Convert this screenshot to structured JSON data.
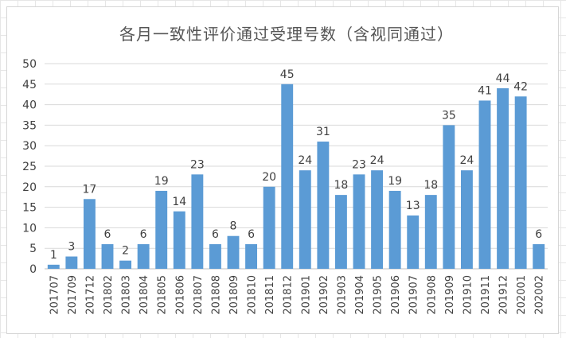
{
  "chart_data": {
    "type": "bar",
    "title": "各月一致性评价通过受理号数（含视同通过）",
    "categories": [
      "201707",
      "201709",
      "201712",
      "201802",
      "201803",
      "201804",
      "201805",
      "201806",
      "201807",
      "201808",
      "201809",
      "201810",
      "201811",
      "201812",
      "201901",
      "201902",
      "201903",
      "201904",
      "201905",
      "201906",
      "201907",
      "201908",
      "201909",
      "201910",
      "201911",
      "201912",
      "202001",
      "202002"
    ],
    "values": [
      1,
      3,
      17,
      6,
      2,
      6,
      19,
      14,
      23,
      6,
      8,
      6,
      20,
      45,
      24,
      31,
      18,
      23,
      24,
      19,
      13,
      18,
      35,
      24,
      41,
      44,
      42,
      6
    ],
    "ylim": [
      0,
      50
    ],
    "yticks": [
      0,
      5,
      10,
      15,
      20,
      25,
      30,
      35,
      40,
      45,
      50
    ],
    "grid": true,
    "legend": "none",
    "bar_color": "#5b9bd5",
    "xlabel": "",
    "ylabel": ""
  }
}
